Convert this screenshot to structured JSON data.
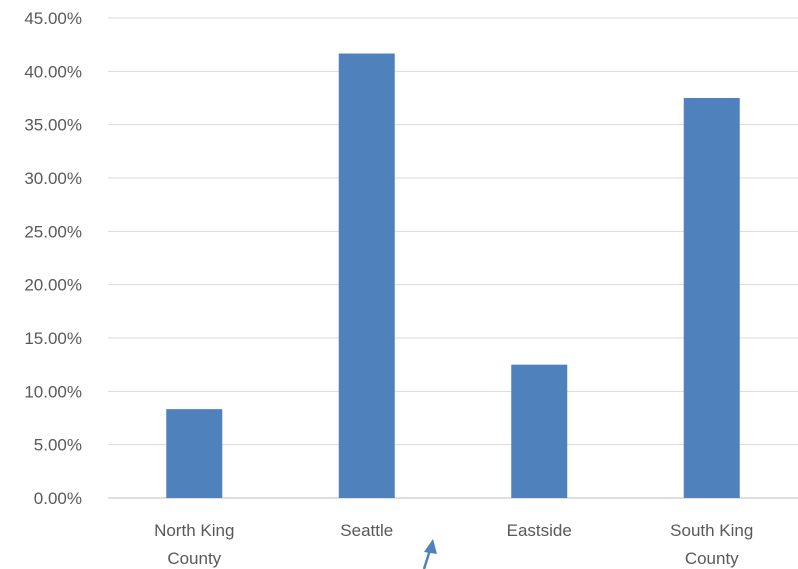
{
  "chart_data": {
    "type": "bar",
    "categories": [
      [
        "North King",
        "County"
      ],
      [
        "Seattle"
      ],
      [
        "Eastside"
      ],
      [
        "South King",
        "County"
      ]
    ],
    "values": [
      8.33,
      41.67,
      12.5,
      37.5
    ],
    "ylim": [
      0,
      45
    ],
    "yticks": [
      "0.00%",
      "5.00%",
      "10.00%",
      "15.00%",
      "20.00%",
      "25.00%",
      "30.00%",
      "35.00%",
      "40.00%",
      "45.00%"
    ],
    "ytick_values": [
      0,
      5,
      10,
      15,
      20,
      25,
      30,
      35,
      40,
      45
    ],
    "grid": true,
    "bar_color": "#4f81bd",
    "annotations": [
      {
        "type": "arrow",
        "color": "#4f81bd",
        "anchor": "below-axis-between-seattle-and-eastside"
      }
    ]
  }
}
